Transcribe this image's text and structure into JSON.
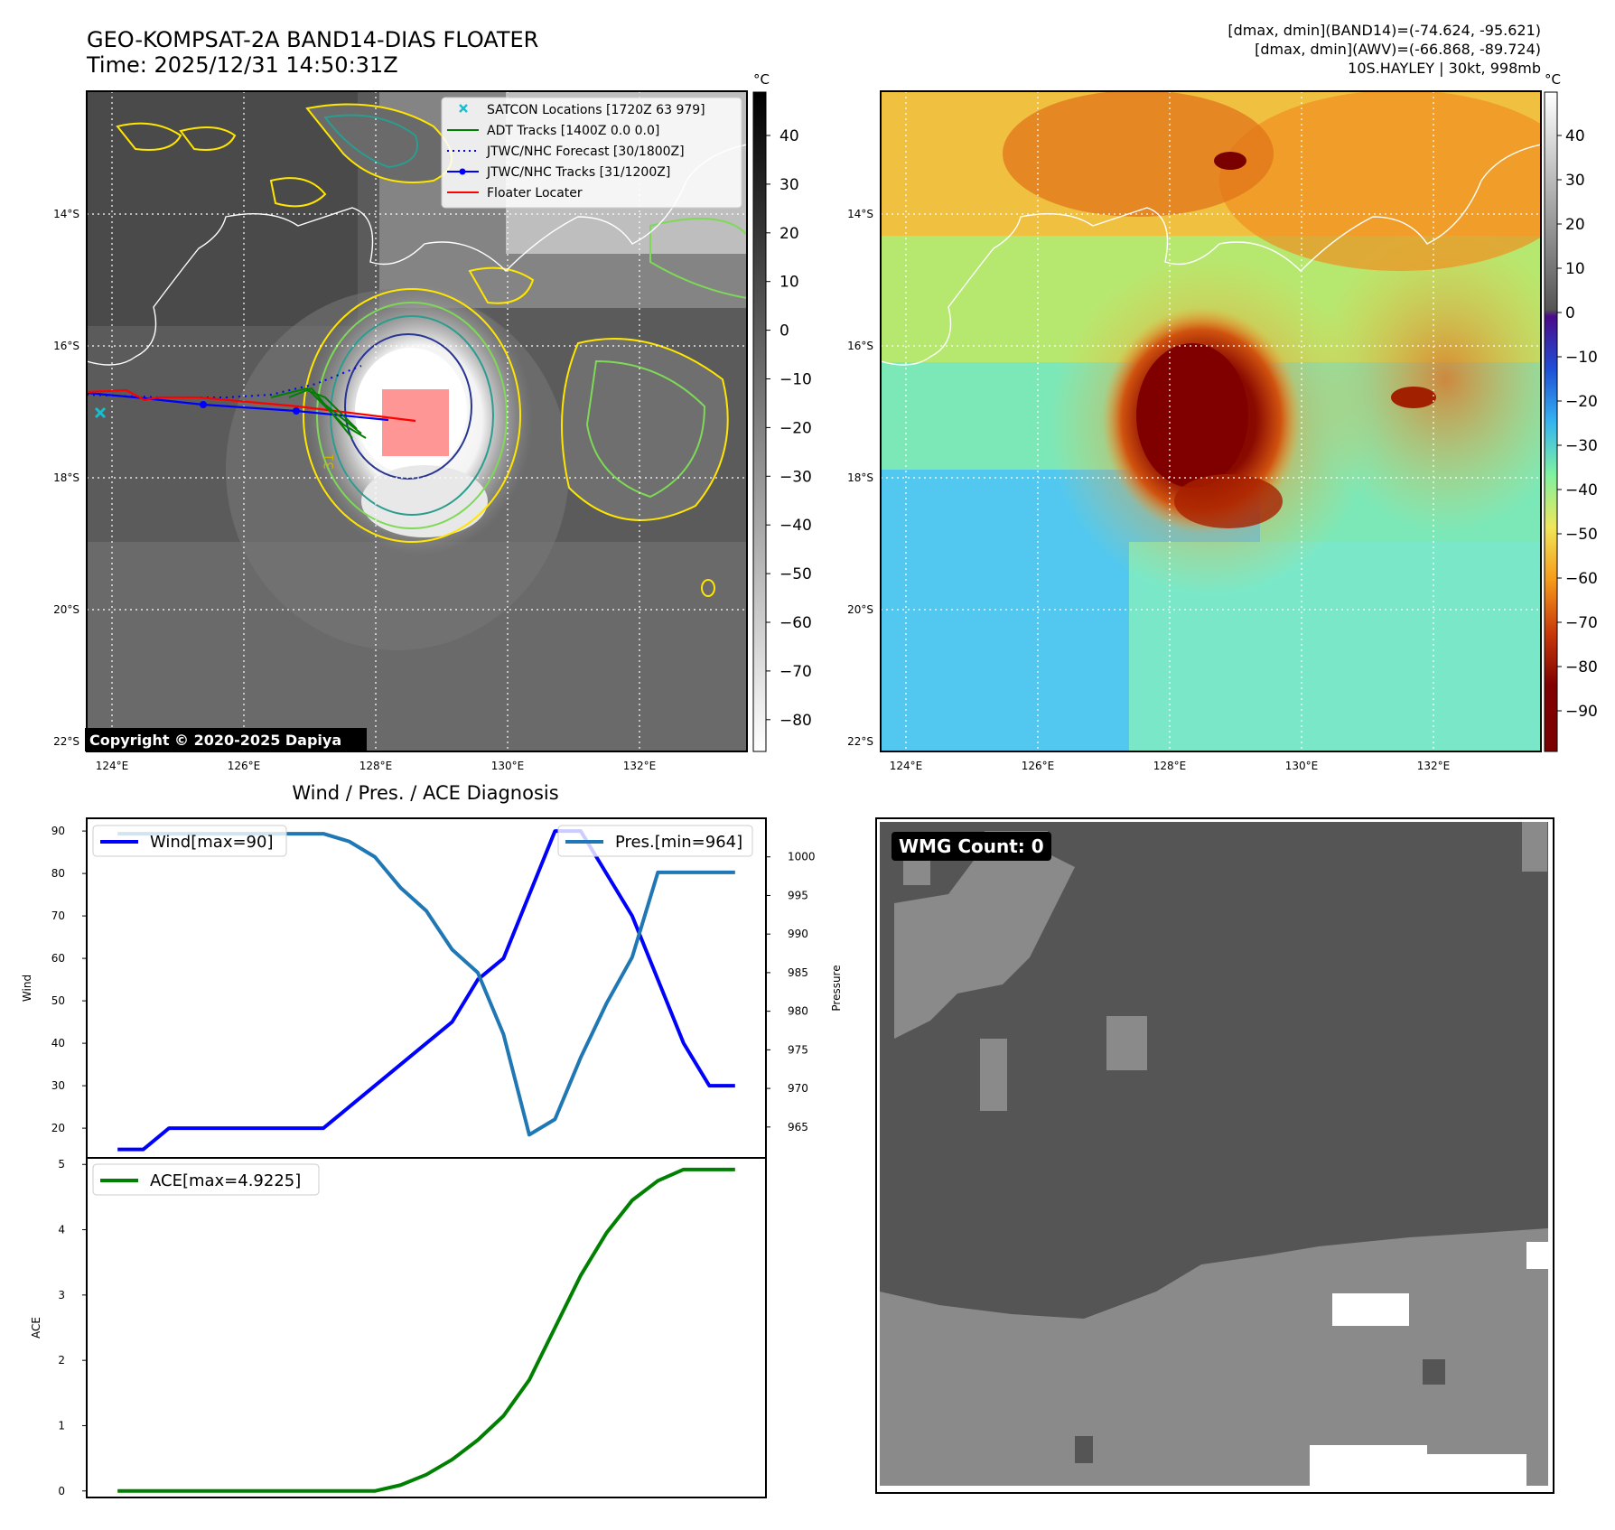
{
  "header": {
    "title_line1": "GEO-KOMPSAT-2A BAND14-DIAS FLOATER",
    "title_line2": "Time: 2025/12/31 14:50:31Z",
    "info_line1": "[dmax, dmin](BAND14)=(-74.624, -95.621)",
    "info_line2": "[dmax, dmin](AWV)=(-66.868, -89.724)",
    "info_line3": "10S.HAYLEY | 30kt, 998mb"
  },
  "map": {
    "lat_ticks": [
      "14°S",
      "16°S",
      "18°S",
      "20°S",
      "22°S"
    ],
    "lon_ticks": [
      "124°E",
      "126°E",
      "128°E",
      "130°E",
      "132°E"
    ],
    "copyright": "Copyright © 2020-2025 Dapiya",
    "legend": [
      {
        "label": "SATCON Locations [1720Z 63 979]",
        "color": "#17becf",
        "style": "x"
      },
      {
        "label": "ADT Tracks [1400Z 0.0 0.0]",
        "color": "#008000",
        "style": "solid"
      },
      {
        "label": "JTWC/NHC Forecast [30/1800Z]",
        "color": "#0000ff",
        "style": "dotted"
      },
      {
        "label": "JTWC/NHC Tracks [31/1200Z]",
        "color": "#0000ff",
        "style": "dot-line"
      },
      {
        "label": "Floater Locater",
        "color": "#ff0000",
        "style": "solid"
      }
    ],
    "contour_label": "31"
  },
  "colorbar_left": {
    "unit": "°C",
    "ticks": [
      "40",
      "30",
      "20",
      "10",
      "0",
      "−10",
      "−20",
      "−30",
      "−40",
      "−50",
      "−60",
      "−70",
      "−80"
    ]
  },
  "colorbar_right": {
    "unit": "°C",
    "ticks": [
      "40",
      "30",
      "20",
      "10",
      "0",
      "−10",
      "−20",
      "−30",
      "−40",
      "−50",
      "−60",
      "−70",
      "−80",
      "−90"
    ]
  },
  "diag_title": "Wind / Pres. / ACE Diagnosis",
  "wmg_label": "WMG Count: 0",
  "chart_data": [
    {
      "type": "line",
      "title": "Wind / Pres. / ACE Diagnosis",
      "ylabel": "Wind",
      "ylabel_right": "Pressure",
      "ylim": [
        13,
        93
      ],
      "ylim_right": [
        961,
        1005
      ],
      "yticks": [
        20,
        30,
        40,
        50,
        60,
        70,
        80,
        90
      ],
      "yticks_right": [
        965,
        970,
        975,
        980,
        985,
        990,
        995,
        1000
      ],
      "x": [
        0,
        1,
        2,
        3,
        4,
        5,
        6,
        7,
        8,
        9,
        10,
        11,
        12,
        13,
        14,
        15,
        16,
        17,
        18,
        19,
        20,
        21,
        22,
        23,
        24
      ],
      "series": [
        {
          "name": "Wind[max=90]",
          "axis": "left",
          "color": "#0000ff",
          "values": [
            15,
            15,
            20,
            20,
            20,
            20,
            20,
            20,
            20,
            25,
            30,
            35,
            40,
            45,
            55,
            60,
            75,
            90,
            90,
            80,
            70,
            55,
            40,
            30,
            30
          ]
        },
        {
          "name": "Pres.[min=964]",
          "axis": "right",
          "color": "#1f77b4",
          "values": [
            1003,
            1003,
            1003,
            1003,
            1003,
            1003,
            1003,
            1003,
            1003,
            1002,
            1000,
            996,
            993,
            988,
            985,
            977,
            964,
            966,
            974,
            981,
            987,
            998,
            998,
            998,
            998
          ]
        }
      ]
    },
    {
      "type": "line",
      "ylabel": "ACE",
      "ylim": [
        -0.1,
        5.1
      ],
      "yticks": [
        0,
        1,
        2,
        3,
        4,
        5
      ],
      "x": [
        0,
        1,
        2,
        3,
        4,
        5,
        6,
        7,
        8,
        9,
        10,
        11,
        12,
        13,
        14,
        15,
        16,
        17,
        18,
        19,
        20,
        21,
        22,
        23,
        24
      ],
      "series": [
        {
          "name": "ACE[max=4.9225]",
          "color": "#008000",
          "values": [
            0,
            0,
            0,
            0,
            0,
            0,
            0,
            0,
            0,
            0,
            0,
            0.09,
            0.25,
            0.48,
            0.78,
            1.15,
            1.7,
            2.5,
            3.3,
            3.95,
            4.45,
            4.75,
            4.9225,
            4.9225,
            4.9225
          ]
        }
      ]
    }
  ]
}
